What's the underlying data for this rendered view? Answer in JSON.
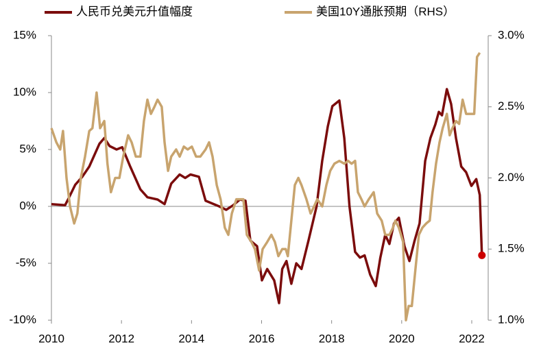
{
  "chart_data": {
    "type": "line",
    "xlim": [
      2010,
      2022.47
    ],
    "xticks": [
      2010,
      2012,
      2014,
      2016,
      2018,
      2020,
      2022
    ],
    "ylim": [
      -10,
      15
    ],
    "yticks": [
      {
        "value": 15,
        "label": "15%"
      },
      {
        "value": 10,
        "label": "10%"
      },
      {
        "value": 5,
        "label": "5%"
      },
      {
        "value": 0,
        "label": "0%"
      },
      {
        "value": -5,
        "label": "-5%"
      },
      {
        "value": -10,
        "label": "-10%"
      }
    ],
    "y2lim": [
      1.0,
      3.0
    ],
    "y2ticks": [
      {
        "value": 3,
        "label": "3.0%"
      },
      {
        "value": 2.5,
        "label": "2.5%"
      },
      {
        "value": 2,
        "label": "2.0%"
      },
      {
        "value": 1.5,
        "label": "1.5%"
      },
      {
        "value": 1,
        "label": "1.0%"
      }
    ],
    "zero_line": true,
    "legend": "top",
    "end_marker_color": "#cc0000",
    "series": [
      {
        "name": "人民币兑美元升值幅度",
        "color": "#7b0c0c",
        "axis": "y",
        "end_marker": true,
        "x": [
          2010.0,
          2010.39,
          2010.49,
          2010.68,
          2010.88,
          2011.08,
          2011.37,
          2011.51,
          2011.66,
          2011.86,
          2012.02,
          2012.25,
          2012.54,
          2012.74,
          2013.03,
          2013.23,
          2013.42,
          2013.66,
          2013.82,
          2013.97,
          2014.21,
          2014.4,
          2014.79,
          2014.99,
          2015.19,
          2015.38,
          2015.54,
          2015.68,
          2015.87,
          2016.01,
          2016.16,
          2016.36,
          2016.5,
          2016.59,
          2016.71,
          2016.85,
          2016.99,
          2017.14,
          2017.34,
          2017.57,
          2017.73,
          2017.89,
          2018.02,
          2018.22,
          2018.36,
          2018.51,
          2018.67,
          2018.81,
          2018.94,
          2019.1,
          2019.26,
          2019.39,
          2019.53,
          2019.65,
          2019.78,
          2019.92,
          2020.08,
          2020.22,
          2020.37,
          2020.51,
          2020.67,
          2020.82,
          2020.96,
          2021.06,
          2021.15,
          2021.29,
          2021.41,
          2021.55,
          2021.7,
          2021.84,
          2021.99,
          2022.13,
          2022.23,
          2022.29
        ],
        "values": [
          0.2,
          0.1,
          0.7,
          1.9,
          2.6,
          3.5,
          5.5,
          6.0,
          5.3,
          5.0,
          5.2,
          3.5,
          1.5,
          0.8,
          0.6,
          0.2,
          2.0,
          2.8,
          2.5,
          2.8,
          2.6,
          0.5,
          0.0,
          -0.3,
          0.1,
          0.6,
          0.5,
          -3.0,
          -3.5,
          -6.5,
          -5.5,
          -6.5,
          -8.5,
          -5.5,
          -4.8,
          -6.8,
          -5.0,
          -5.5,
          -3.0,
          0.0,
          4.0,
          7.0,
          8.8,
          9.3,
          6.0,
          0.0,
          -4.0,
          -4.5,
          -4.3,
          -6.0,
          -7.0,
          -4.5,
          -2.5,
          -3.3,
          -1.5,
          -1.0,
          -3.5,
          -4.8,
          -3.0,
          -1.5,
          4.0,
          6.0,
          7.2,
          8.3,
          8.0,
          10.3,
          9.0,
          6.0,
          3.5,
          3.0,
          1.8,
          2.4,
          1.0,
          -4.3
        ]
      },
      {
        "name": "美国10Y通胀预期（RHS）",
        "color": "#c8a46e",
        "axis": "y2",
        "x": [
          2010.0,
          2010.14,
          2010.25,
          2010.33,
          2010.43,
          2010.53,
          2010.65,
          2010.74,
          2010.84,
          2010.96,
          2011.08,
          2011.17,
          2011.29,
          2011.39,
          2011.51,
          2011.6,
          2011.7,
          2011.82,
          2011.94,
          2012.05,
          2012.19,
          2012.29,
          2012.41,
          2012.54,
          2012.64,
          2012.74,
          2012.84,
          2012.94,
          2013.03,
          2013.15,
          2013.23,
          2013.33,
          2013.42,
          2013.56,
          2013.66,
          2013.78,
          2013.89,
          2014.01,
          2014.13,
          2014.25,
          2014.4,
          2014.5,
          2014.6,
          2014.72,
          2014.83,
          2014.95,
          2015.05,
          2015.15,
          2015.28,
          2015.38,
          2015.48,
          2015.58,
          2015.71,
          2015.81,
          2015.93,
          2016.03,
          2016.16,
          2016.28,
          2016.38,
          2016.48,
          2016.59,
          2016.69,
          2016.75,
          2016.85,
          2016.95,
          2017.05,
          2017.14,
          2017.28,
          2017.4,
          2017.5,
          2017.59,
          2017.73,
          2017.85,
          2017.96,
          2018.08,
          2018.22,
          2018.36,
          2018.47,
          2018.57,
          2018.67,
          2018.75,
          2018.85,
          2018.94,
          2019.06,
          2019.2,
          2019.3,
          2019.43,
          2019.53,
          2019.65,
          2019.75,
          2019.82,
          2019.92,
          2020.04,
          2020.12,
          2020.2,
          2020.29,
          2020.39,
          2020.49,
          2020.59,
          2020.7,
          2020.8,
          2020.88,
          2020.98,
          2021.08,
          2021.17,
          2021.29,
          2021.37,
          2021.45,
          2021.55,
          2021.64,
          2021.74,
          2021.84,
          2021.96,
          2022.07,
          2022.15,
          2022.23
        ],
        "values": [
          2.35,
          2.25,
          2.2,
          2.33,
          2.0,
          1.8,
          1.68,
          1.75,
          2.0,
          2.15,
          2.33,
          2.35,
          2.6,
          2.35,
          2.4,
          2.1,
          1.9,
          2.0,
          2.0,
          2.15,
          2.3,
          2.25,
          2.15,
          2.15,
          2.4,
          2.55,
          2.45,
          2.5,
          2.55,
          2.5,
          2.25,
          2.05,
          2.15,
          2.2,
          2.15,
          2.22,
          2.2,
          2.22,
          2.15,
          2.15,
          2.2,
          2.25,
          2.15,
          1.95,
          1.85,
          1.65,
          1.6,
          1.75,
          1.85,
          1.85,
          1.85,
          1.6,
          1.55,
          1.5,
          1.35,
          1.5,
          1.55,
          1.6,
          1.55,
          1.45,
          1.5,
          1.5,
          1.45,
          1.7,
          1.95,
          2.0,
          1.95,
          1.85,
          1.75,
          1.8,
          1.85,
          1.8,
          1.95,
          2.05,
          2.1,
          2.12,
          2.1,
          2.12,
          2.1,
          2.12,
          1.9,
          1.85,
          1.8,
          1.85,
          1.9,
          1.75,
          1.7,
          1.6,
          1.6,
          1.65,
          1.7,
          1.65,
          1.55,
          1.0,
          1.1,
          1.1,
          1.35,
          1.6,
          1.65,
          1.68,
          1.7,
          1.9,
          2.1,
          2.25,
          2.35,
          2.45,
          2.3,
          2.35,
          2.4,
          2.38,
          2.55,
          2.45,
          2.45,
          2.45,
          2.85,
          2.88
        ]
      }
    ]
  }
}
